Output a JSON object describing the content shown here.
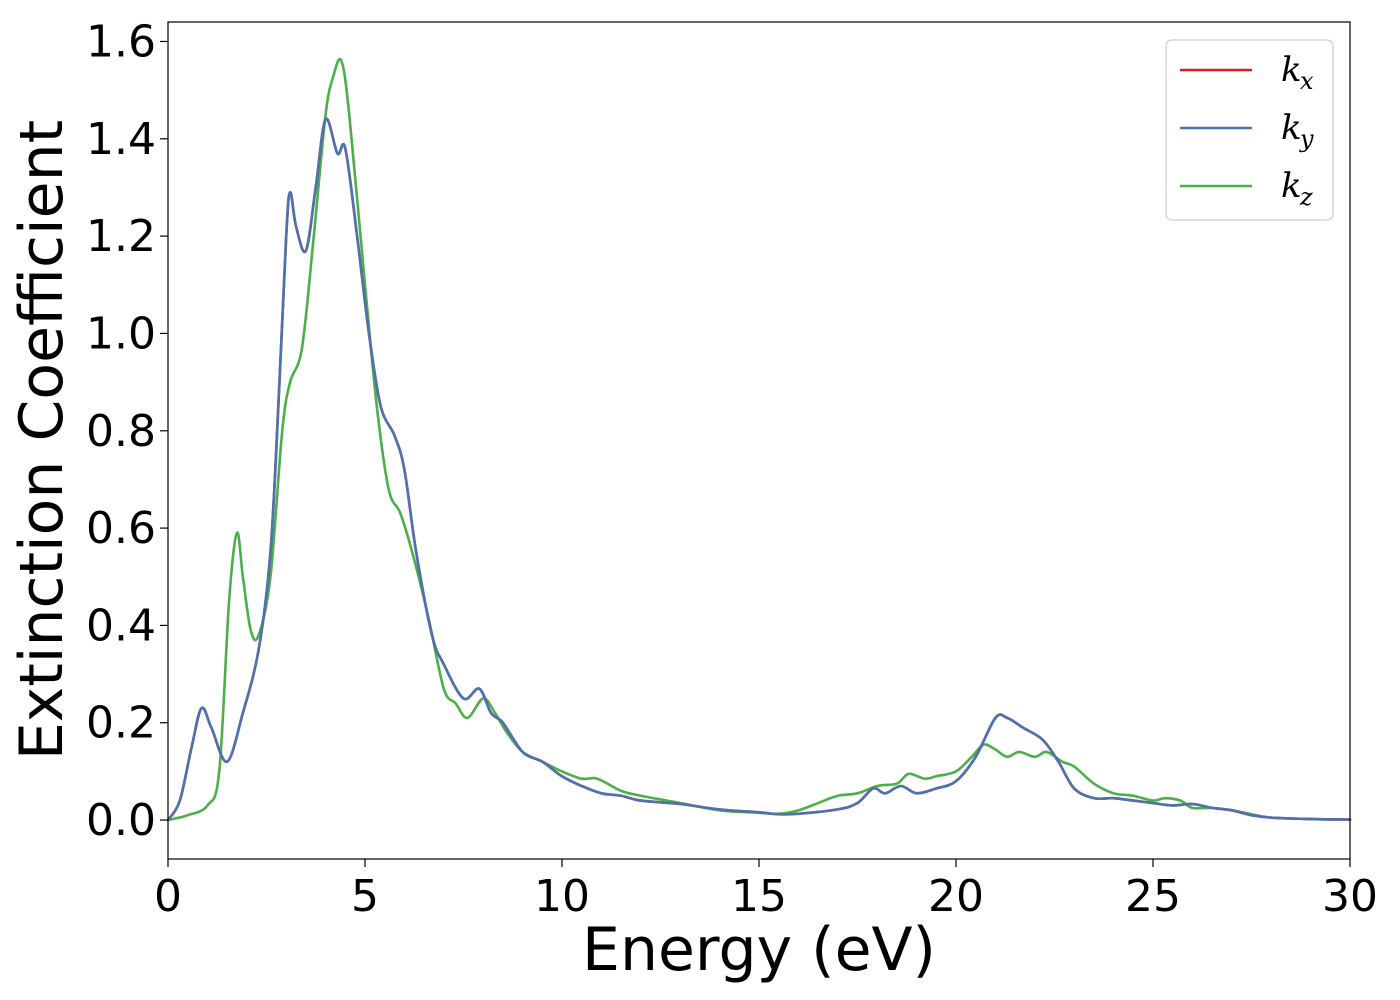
{
  "chart_data": {
    "type": "line",
    "title": "",
    "xlabel": "Energy (eV)",
    "ylabel": "Extinction Coefficient",
    "xlim": [
      0,
      30
    ],
    "ylim": [
      -0.08,
      1.64
    ],
    "xticks": [
      0,
      5,
      10,
      15,
      20,
      25,
      30
    ],
    "xtick_labels": [
      "0",
      "5",
      "10",
      "15",
      "20",
      "25",
      "30"
    ],
    "yticks": [
      0.0,
      0.2,
      0.4,
      0.6,
      0.8,
      1.0,
      1.2,
      1.4,
      1.6
    ],
    "ytick_labels": [
      "0.0",
      "0.2",
      "0.4",
      "0.6",
      "0.8",
      "1.0",
      "1.2",
      "1.4",
      "1.6"
    ],
    "grid": false,
    "legend_position": "top-right",
    "series": [
      {
        "name": "k_x",
        "legend_base": "k",
        "legend_sub": "x",
        "color": "#e41a1c",
        "x": [
          0,
          0.3,
          0.6,
          0.85,
          1.1,
          1.5,
          1.9,
          2.3,
          2.6,
          2.8,
          3.0,
          3.1,
          3.25,
          3.5,
          3.75,
          4.0,
          4.3,
          4.5,
          4.8,
          5.1,
          5.4,
          5.75,
          6.0,
          6.3,
          6.7,
          7.0,
          7.5,
          7.9,
          8.2,
          8.5,
          9.0,
          9.5,
          10.0,
          10.5,
          11.0,
          11.5,
          12.0,
          13.0,
          14.0,
          15.0,
          15.5,
          16.0,
          17.0,
          17.5,
          17.9,
          18.2,
          18.6,
          19.0,
          19.5,
          20.0,
          20.5,
          21.0,
          21.3,
          21.7,
          22.2,
          22.6,
          23.0,
          23.5,
          24.0,
          24.5,
          25.0,
          25.5,
          26.0,
          26.5,
          27.0,
          27.5,
          28.0,
          29.0,
          30.0
        ],
        "y": [
          0,
          0.04,
          0.15,
          0.23,
          0.19,
          0.12,
          0.22,
          0.35,
          0.55,
          0.85,
          1.2,
          1.29,
          1.22,
          1.17,
          1.3,
          1.44,
          1.37,
          1.38,
          1.2,
          1.0,
          0.85,
          0.79,
          0.72,
          0.55,
          0.38,
          0.32,
          0.25,
          0.27,
          0.22,
          0.2,
          0.14,
          0.12,
          0.09,
          0.07,
          0.055,
          0.05,
          0.04,
          0.033,
          0.022,
          0.016,
          0.012,
          0.013,
          0.022,
          0.035,
          0.065,
          0.055,
          0.07,
          0.055,
          0.065,
          0.08,
          0.13,
          0.21,
          0.21,
          0.19,
          0.165,
          0.12,
          0.065,
          0.045,
          0.045,
          0.04,
          0.035,
          0.03,
          0.033,
          0.025,
          0.02,
          0.01,
          0.005,
          0.002,
          0.001
        ]
      },
      {
        "name": "k_y",
        "legend_base": "k",
        "legend_sub": "y",
        "color": "#4a73b0",
        "x": [
          0,
          0.3,
          0.6,
          0.85,
          1.1,
          1.5,
          1.9,
          2.3,
          2.6,
          2.8,
          3.0,
          3.1,
          3.25,
          3.5,
          3.75,
          4.0,
          4.3,
          4.5,
          4.8,
          5.1,
          5.4,
          5.75,
          6.0,
          6.3,
          6.7,
          7.0,
          7.5,
          7.9,
          8.2,
          8.5,
          9.0,
          9.5,
          10.0,
          10.5,
          11.0,
          11.5,
          12.0,
          13.0,
          14.0,
          15.0,
          15.5,
          16.0,
          17.0,
          17.5,
          17.9,
          18.2,
          18.6,
          19.0,
          19.5,
          20.0,
          20.5,
          21.0,
          21.3,
          21.7,
          22.2,
          22.6,
          23.0,
          23.5,
          24.0,
          24.5,
          25.0,
          25.5,
          26.0,
          26.5,
          27.0,
          27.5,
          28.0,
          29.0,
          30.0
        ],
        "y": [
          0,
          0.04,
          0.15,
          0.23,
          0.19,
          0.12,
          0.22,
          0.35,
          0.55,
          0.85,
          1.2,
          1.29,
          1.22,
          1.17,
          1.3,
          1.44,
          1.37,
          1.38,
          1.2,
          1.0,
          0.85,
          0.79,
          0.72,
          0.55,
          0.38,
          0.32,
          0.25,
          0.27,
          0.22,
          0.2,
          0.14,
          0.12,
          0.09,
          0.07,
          0.055,
          0.05,
          0.04,
          0.033,
          0.022,
          0.016,
          0.012,
          0.013,
          0.022,
          0.035,
          0.065,
          0.055,
          0.07,
          0.055,
          0.065,
          0.08,
          0.13,
          0.21,
          0.21,
          0.19,
          0.165,
          0.12,
          0.065,
          0.045,
          0.045,
          0.04,
          0.035,
          0.03,
          0.033,
          0.025,
          0.02,
          0.01,
          0.005,
          0.002,
          0.001
        ]
      },
      {
        "name": "k_z",
        "legend_base": "k",
        "legend_sub": "z",
        "color": "#4daf4a",
        "x": [
          0,
          0.5,
          1.0,
          1.3,
          1.55,
          1.75,
          1.9,
          2.1,
          2.3,
          2.6,
          2.9,
          3.1,
          3.4,
          3.7,
          4.0,
          4.2,
          4.4,
          4.6,
          5.0,
          5.3,
          5.6,
          5.9,
          6.2,
          6.6,
          7.0,
          7.3,
          7.6,
          8.0,
          8.3,
          8.6,
          9.0,
          9.5,
          10.0,
          10.5,
          10.9,
          11.5,
          12.0,
          13.0,
          14.0,
          15.0,
          15.5,
          16.0,
          16.5,
          17.0,
          17.5,
          18.0,
          18.5,
          18.8,
          19.2,
          19.5,
          20.0,
          20.4,
          20.7,
          21.0,
          21.3,
          21.6,
          22.0,
          22.3,
          22.7,
          23.0,
          23.5,
          24.0,
          24.5,
          25.0,
          25.3,
          25.7,
          26.0,
          26.5,
          27.0,
          27.5,
          28.0,
          29.0,
          30.0
        ],
        "y": [
          0,
          0.01,
          0.03,
          0.1,
          0.45,
          0.59,
          0.5,
          0.39,
          0.38,
          0.5,
          0.8,
          0.9,
          0.97,
          1.2,
          1.45,
          1.53,
          1.56,
          1.45,
          1.1,
          0.85,
          0.68,
          0.63,
          0.55,
          0.42,
          0.27,
          0.24,
          0.21,
          0.25,
          0.22,
          0.18,
          0.14,
          0.12,
          0.1,
          0.085,
          0.085,
          0.06,
          0.05,
          0.035,
          0.02,
          0.015,
          0.013,
          0.02,
          0.035,
          0.05,
          0.055,
          0.07,
          0.075,
          0.095,
          0.085,
          0.09,
          0.1,
          0.13,
          0.155,
          0.145,
          0.13,
          0.14,
          0.13,
          0.14,
          0.12,
          0.11,
          0.075,
          0.055,
          0.05,
          0.04,
          0.045,
          0.04,
          0.025,
          0.025,
          0.02,
          0.012,
          0.005,
          0.002,
          0.001
        ]
      }
    ]
  }
}
